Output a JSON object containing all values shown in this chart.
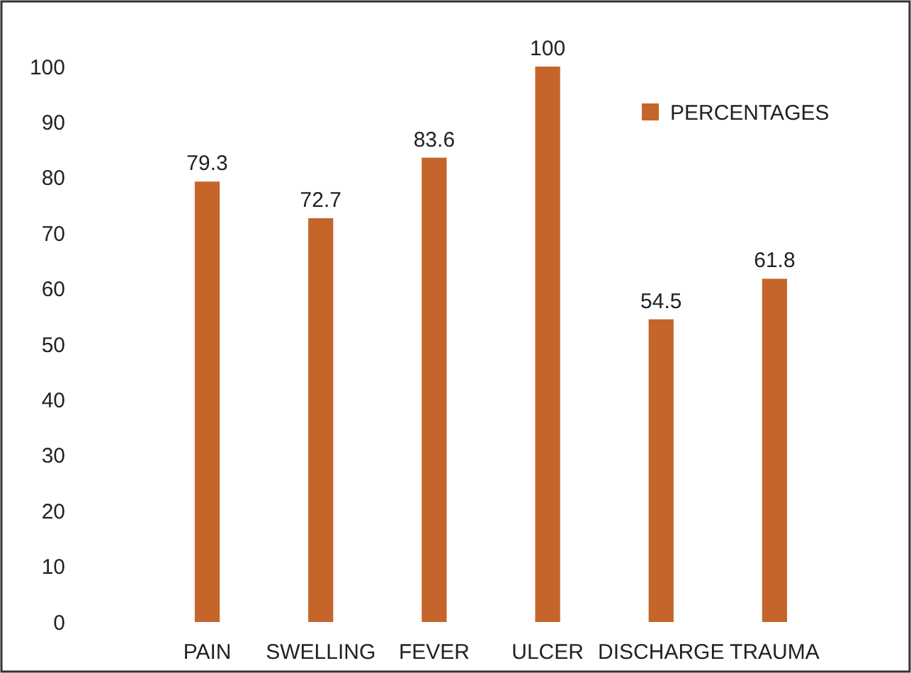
{
  "chart_data": {
    "type": "bar",
    "categories": [
      "PAIN",
      "SWELLING",
      "FEVER",
      "ULCER",
      "DISCHARGE",
      "TRAUMA"
    ],
    "series": [
      {
        "name": "PERCENTAGES",
        "color": "#c5652b",
        "values": [
          79.3,
          72.7,
          83.6,
          100,
          54.5,
          61.8
        ]
      }
    ],
    "ylim": [
      0,
      100
    ],
    "yticks": [
      0,
      10,
      20,
      30,
      40,
      50,
      60,
      70,
      80,
      90,
      100
    ],
    "grid": false,
    "legend": "top right",
    "data_labels": true
  }
}
